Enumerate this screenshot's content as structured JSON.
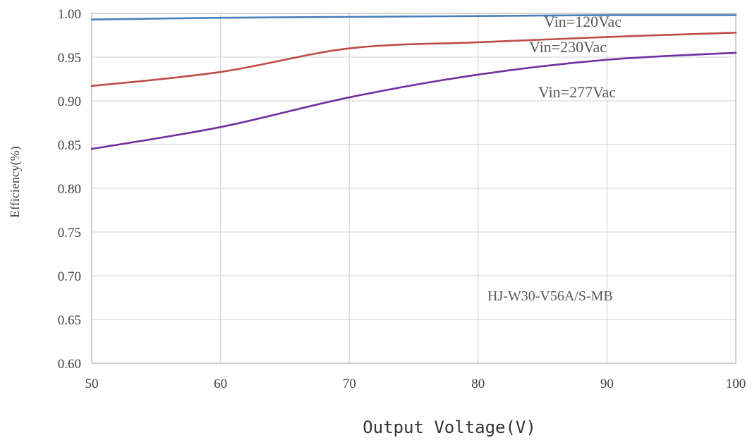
{
  "chart_data": {
    "type": "line",
    "title": "",
    "xlabel": "Output Voltage(V)",
    "ylabel": "Efficiency(%)",
    "xlim": [
      50,
      100
    ],
    "ylim": [
      0.6,
      1.0
    ],
    "x_ticks": [
      "50",
      "60",
      "70",
      "80",
      "90",
      "100"
    ],
    "y_ticks": [
      "1.00",
      "0.95",
      "0.90",
      "0.85",
      "0.80",
      "0.75",
      "0.70",
      "0.65",
      "0.60"
    ],
    "grid": true,
    "legend": "none",
    "series": [
      {
        "name": "Vin=120Vac",
        "color": "#4a7ebb",
        "x": [
          50,
          60,
          70,
          80,
          90,
          100
        ],
        "y": [
          0.993,
          0.995,
          0.996,
          0.997,
          0.998,
          0.998
        ]
      },
      {
        "name": "Vin=230Vac",
        "color": "#be4b48",
        "x": [
          50,
          60,
          70,
          80,
          90,
          100
        ],
        "y": [
          0.917,
          0.933,
          0.96,
          0.967,
          0.973,
          0.978
        ]
      },
      {
        "name": "Vin=277Vac",
        "color": "#7030a0",
        "x": [
          50,
          60,
          70,
          80,
          90,
          100
        ],
        "y": [
          0.845,
          0.87,
          0.904,
          0.93,
          0.947,
          0.955
        ]
      }
    ],
    "annotations": [
      "HJ-W30-V56A/S-MB"
    ]
  }
}
